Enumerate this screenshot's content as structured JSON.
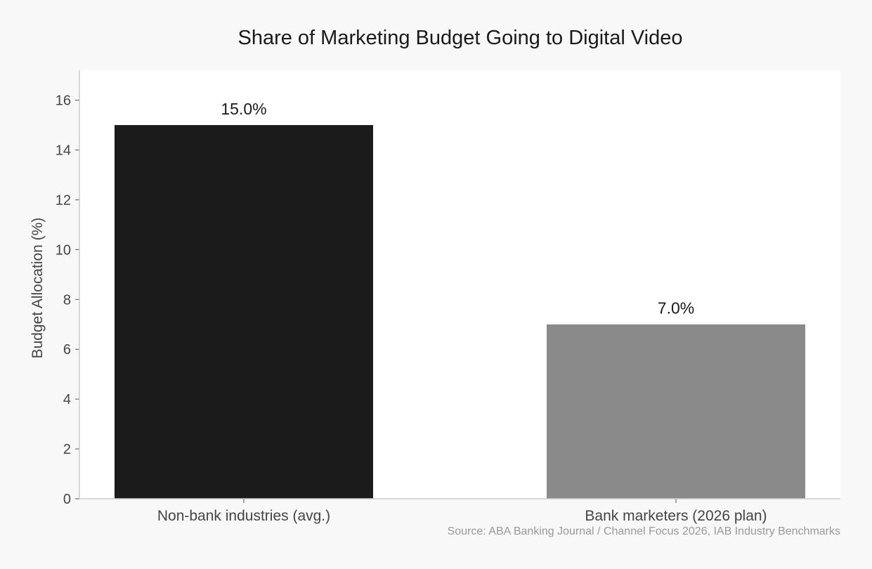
{
  "chart_data": {
    "type": "bar",
    "title": "Share of Marketing Budget Going to Digital Video",
    "ylabel": "Budget Allocation (%)",
    "xlabel": "",
    "categories": [
      "Non-bank industries (avg.)",
      "Bank marketers (2026 plan)"
    ],
    "values": [
      15.0,
      7.0
    ],
    "value_labels": [
      "15.0%",
      "7.0%"
    ],
    "colors": [
      "#1b1b1b",
      "#8a8a8a"
    ],
    "ylim": [
      0,
      17.2
    ],
    "yticks": [
      0,
      2,
      4,
      6,
      8,
      10,
      12,
      14,
      16
    ],
    "ytick_labels": [
      "0",
      "2",
      "4",
      "6",
      "8",
      "10",
      "12",
      "14",
      "16"
    ],
    "grid": false,
    "legend": "none"
  },
  "source": "Source: ABA Banking Journal / Channel Focus 2026, IAB Industry Benchmarks"
}
